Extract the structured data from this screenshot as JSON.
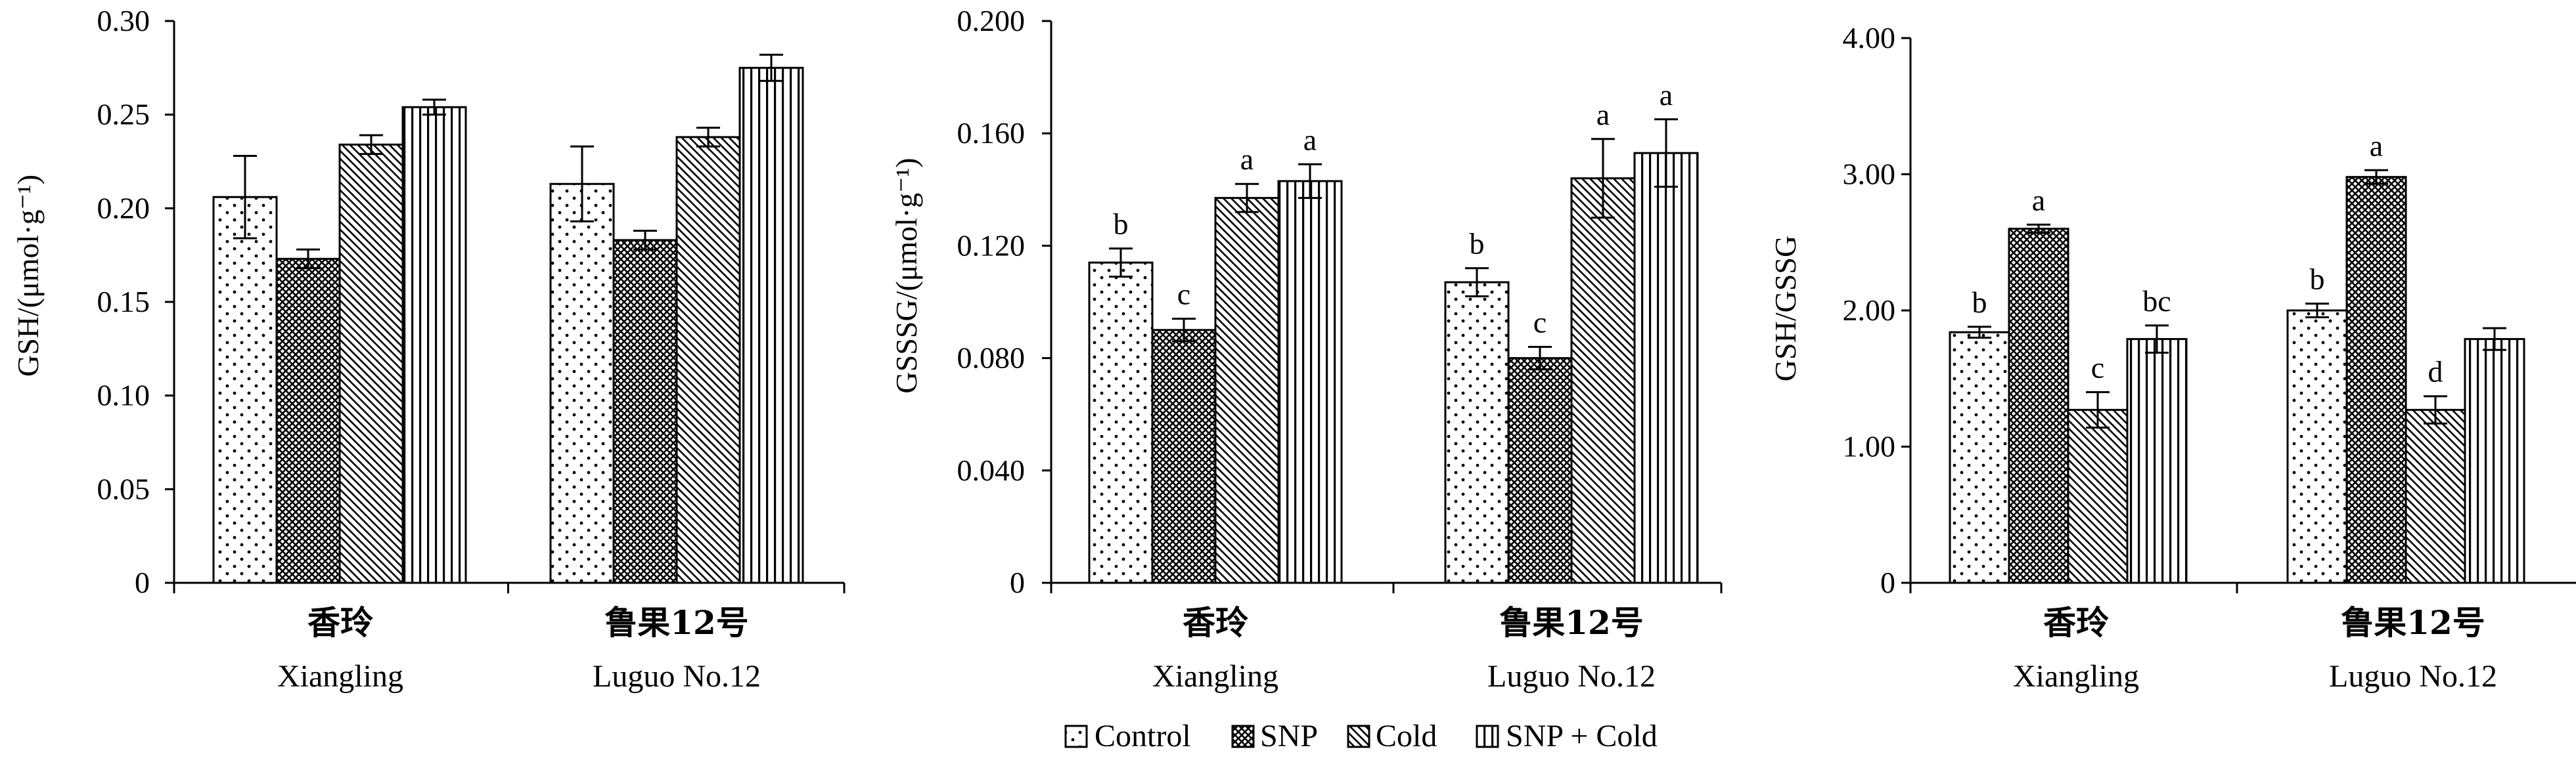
{
  "chart_data": [
    {
      "type": "bar",
      "categories": [
        "香玲",
        "鲁果12号"
      ],
      "categories_en": [
        "Xiangling",
        "Luguo No.12"
      ],
      "ylabel": "GSH/(μmol·g⁻¹)",
      "ylim": [
        0,
        0.3
      ],
      "yticks": [
        "0",
        "0.05",
        "0.10",
        "0.15",
        "0.20",
        "0.25",
        "0.30"
      ],
      "series": [
        {
          "name": "Control",
          "values": [
            0.206,
            0.213
          ],
          "errors": [
            0.022,
            0.02
          ],
          "letters": [
            "",
            ""
          ]
        },
        {
          "name": "SNP",
          "values": [
            0.173,
            0.183
          ],
          "errors": [
            0.005,
            0.005
          ],
          "letters": [
            "",
            ""
          ]
        },
        {
          "name": "Cold",
          "values": [
            0.234,
            0.238
          ],
          "errors": [
            0.005,
            0.005
          ],
          "letters": [
            "",
            ""
          ]
        },
        {
          "name": "SNP + Cold",
          "values": [
            0.254,
            0.275
          ],
          "errors": [
            0.004,
            0.007
          ],
          "letters": [
            "",
            ""
          ]
        }
      ]
    },
    {
      "type": "bar",
      "categories": [
        "香玲",
        "鲁果12号"
      ],
      "categories_en": [
        "Xiangling",
        "Luguo No.12"
      ],
      "ylabel": "GSSSG/(μmol·g⁻¹)",
      "ylim": [
        0,
        0.2
      ],
      "yticks": [
        "0",
        "0.040",
        "0.080",
        "0.120",
        "0.160",
        "0.200"
      ],
      "series": [
        {
          "name": "Control",
          "values": [
            0.114,
            0.107
          ],
          "errors": [
            0.005,
            0.005
          ],
          "letters": [
            "b",
            "b"
          ]
        },
        {
          "name": "SNP",
          "values": [
            0.09,
            0.08
          ],
          "errors": [
            0.004,
            0.004
          ],
          "letters": [
            "c",
            "c"
          ]
        },
        {
          "name": "Cold",
          "values": [
            0.137,
            0.144
          ],
          "errors": [
            0.005,
            0.014
          ],
          "letters": [
            "a",
            "a"
          ]
        },
        {
          "name": "SNP + Cold",
          "values": [
            0.143,
            0.153
          ],
          "errors": [
            0.006,
            0.012
          ],
          "letters": [
            "a",
            "a"
          ]
        }
      ]
    },
    {
      "type": "bar",
      "categories": [
        "香玲",
        "鲁果12号"
      ],
      "categories_en": [
        "Xiangling",
        "Luguo No.12"
      ],
      "ylabel": "GSH/GSSG",
      "ylim": [
        0,
        4.0
      ],
      "yticks": [
        "0",
        "1.00",
        "2.00",
        "3.00",
        "4.00"
      ],
      "series": [
        {
          "name": "Control",
          "values": [
            1.84,
            2.0
          ],
          "errors": [
            0.04,
            0.05
          ],
          "letters": [
            "b",
            "b"
          ]
        },
        {
          "name": "SNP",
          "values": [
            2.6,
            2.98
          ],
          "errors": [
            0.03,
            0.05
          ],
          "letters": [
            "a",
            "a"
          ]
        },
        {
          "name": "Cold",
          "values": [
            1.27,
            1.27
          ],
          "errors": [
            0.13,
            0.1
          ],
          "letters": [
            "c",
            "d"
          ]
        },
        {
          "name": "SNP + Cold",
          "values": [
            1.79,
            1.79
          ],
          "errors": [
            0.1,
            0.08
          ],
          "letters": [
            "bc",
            ""
          ]
        }
      ]
    }
  ],
  "legend": {
    "items": [
      {
        "label": "Control",
        "pattern": "dots"
      },
      {
        "label": "SNP",
        "pattern": "crosshatch"
      },
      {
        "label": "Cold",
        "pattern": "diagonal"
      },
      {
        "label": "SNP + Cold",
        "pattern": "vertical"
      }
    ]
  }
}
